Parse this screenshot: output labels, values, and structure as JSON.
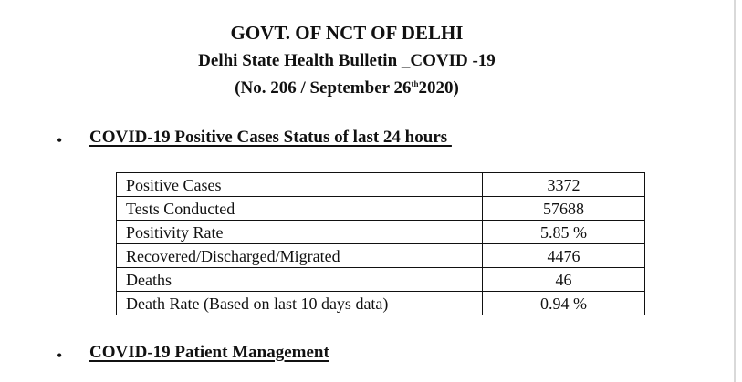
{
  "header": {
    "title": "GOVT. OF NCT OF DELHI",
    "subtitle": "Delhi State Health Bulletin _COVID -19",
    "bulletin_prefix": "(No. 206 / September 26",
    "bulletin_sup": "th",
    "bulletin_suffix": "2020)"
  },
  "sections": [
    {
      "bullet": "•",
      "heading": "COVID-19 Positive Cases Status of last 24 hours "
    },
    {
      "bullet": "•",
      "heading": "COVID-19 Patient Management"
    }
  ],
  "status_table": {
    "rows": [
      {
        "metric": "Positive Cases",
        "value": "3372"
      },
      {
        "metric": "Tests Conducted",
        "value": "57688"
      },
      {
        "metric": "Positivity Rate",
        "value": "5.85 %"
      },
      {
        "metric": "Recovered/Discharged/Migrated",
        "value": "4476"
      },
      {
        "metric": "Deaths",
        "value": "46"
      },
      {
        "metric": "Death Rate (Based on last 10 days data)",
        "value": "0.94 %"
      }
    ]
  }
}
